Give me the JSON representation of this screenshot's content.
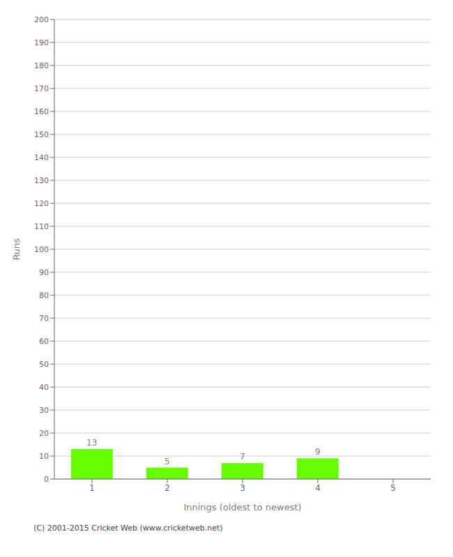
{
  "chart_data": {
    "type": "bar",
    "categories": [
      1,
      2,
      3,
      4,
      5
    ],
    "values": [
      13,
      5,
      7,
      9,
      0
    ],
    "color": "#66ff00",
    "xlabel": "Innings (oldest to newest)",
    "ylabel": "Runs",
    "ylim": [
      0,
      200
    ],
    "yticks": [
      0,
      10,
      20,
      30,
      40,
      50,
      60,
      70,
      80,
      90,
      100,
      110,
      120,
      130,
      140,
      150,
      160,
      170,
      180,
      190,
      200
    ],
    "grid": true,
    "data_labels": true,
    "footer": "(C) 2001-2015 Cricket Web (www.cricketweb.net)"
  }
}
